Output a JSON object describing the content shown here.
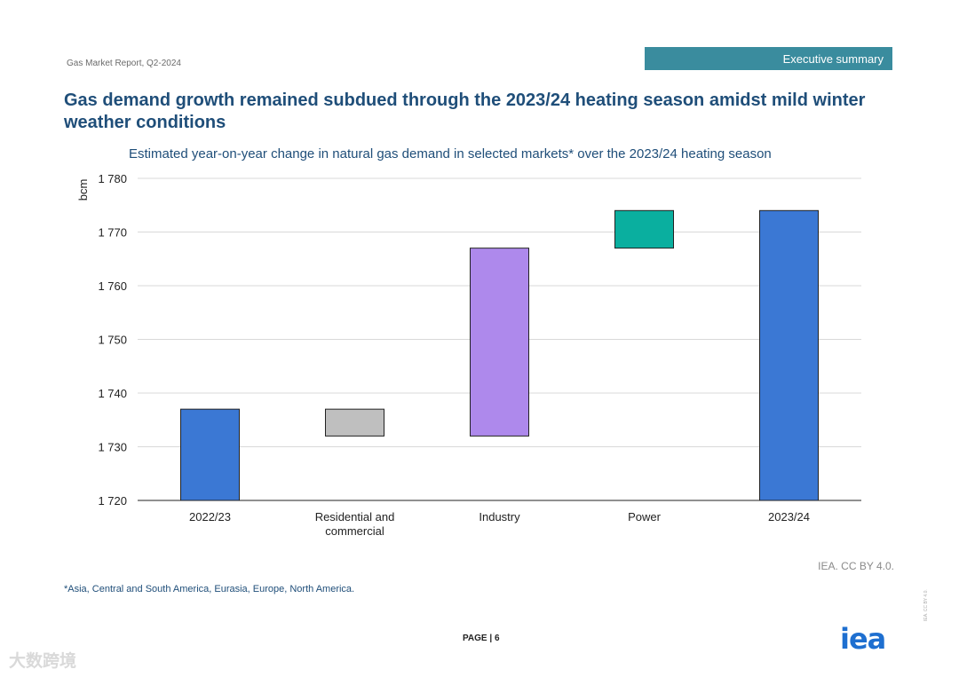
{
  "header": {
    "report_name": "Gas Market Report, Q2-2024",
    "section": "Executive summary"
  },
  "headline": "Gas demand growth remained subdued through the 2023/24 heating season amidst mild winter weather conditions",
  "chart_data": {
    "type": "waterfall",
    "title": "Estimated year-on-year change in natural gas demand in selected markets* over the 2023/24 heating season",
    "ylabel": "bcm",
    "xlabel": "",
    "ylim": [
      1720,
      1780
    ],
    "yticks": [
      1720,
      1730,
      1740,
      1750,
      1760,
      1770,
      1780
    ],
    "ytick_labels": [
      "1 720",
      "1 730",
      "1 740",
      "1 750",
      "1 760",
      "1 770",
      "1 780"
    ],
    "grid": true,
    "categories": [
      "2022/23",
      "Residential and commercial",
      "Industry",
      "Power",
      "2023/24"
    ],
    "bars": [
      {
        "label": "2022/23",
        "kind": "total",
        "start": 1720,
        "end": 1737,
        "color": "#3b78d4"
      },
      {
        "label": "Residential and commercial",
        "kind": "change",
        "start": 1737,
        "end": 1732,
        "color": "#bfbfbf"
      },
      {
        "label": "Industry",
        "kind": "change",
        "start": 1732,
        "end": 1767,
        "color": "#ae89ec"
      },
      {
        "label": "Power",
        "kind": "change",
        "start": 1767,
        "end": 1774,
        "color": "#0aaf9f"
      },
      {
        "label": "2023/24",
        "kind": "total",
        "start": 1720,
        "end": 1774,
        "color": "#3b78d4"
      }
    ]
  },
  "footer": {
    "credit": "IEA. CC BY 4.0.",
    "footnote": "*Asia, Central and South America, Eurasia, Europe, North America.",
    "page_label": "PAGE | 6",
    "logo_text": "iea",
    "license_small": "IEA. CC BY 4.0.",
    "watermark": "大数跨境"
  }
}
